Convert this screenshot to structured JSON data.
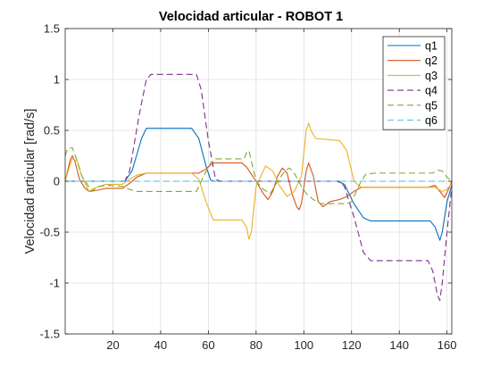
{
  "chart_data": {
    "type": "line",
    "title": "Velocidad articular - ROBOT 1",
    "xlabel": "",
    "ylabel": "Velocidad articular [rad/s]",
    "xlim": [
      0,
      162
    ],
    "ylim": [
      -1.5,
      1.5
    ],
    "xticks": [
      20,
      40,
      60,
      80,
      100,
      120,
      140,
      160
    ],
    "yticks": [
      -1.5,
      -1,
      -0.5,
      0,
      0.5,
      1,
      1.5
    ],
    "ytick_labels": [
      "-1.5",
      "-1",
      "-0.5",
      "0",
      "0.5",
      "1",
      "1.5"
    ],
    "grid": true,
    "legend_position": "top-right",
    "series": [
      {
        "name": "q1",
        "color": "#0072BD",
        "dash": "solid",
        "points": [
          [
            0,
            0
          ],
          [
            25,
            0
          ],
          [
            28,
            0.1
          ],
          [
            32,
            0.42
          ],
          [
            34,
            0.52
          ],
          [
            53,
            0.52
          ],
          [
            56,
            0.42
          ],
          [
            59,
            0.15
          ],
          [
            61,
            0.01
          ],
          [
            63,
            0
          ],
          [
            114,
            0
          ],
          [
            117,
            -0.03
          ],
          [
            121,
            -0.22
          ],
          [
            125,
            -0.36
          ],
          [
            128,
            -0.39
          ],
          [
            153,
            -0.39
          ],
          [
            155,
            -0.45
          ],
          [
            157,
            -0.58
          ],
          [
            158,
            -0.5
          ],
          [
            160,
            -0.2
          ],
          [
            162,
            -0.04
          ]
        ]
      },
      {
        "name": "q2",
        "color": "#D95319",
        "dash": "solid",
        "points": [
          [
            0,
            0
          ],
          [
            2,
            0.2
          ],
          [
            3,
            0.25
          ],
          [
            4,
            0.2
          ],
          [
            6,
            0.02
          ],
          [
            8,
            -0.06
          ],
          [
            10,
            -0.1
          ],
          [
            13,
            -0.09
          ],
          [
            17,
            -0.07
          ],
          [
            24,
            -0.07
          ],
          [
            27,
            -0.02
          ],
          [
            30,
            0.04
          ],
          [
            34,
            0.08
          ],
          [
            56,
            0.08
          ],
          [
            59,
            0.12
          ],
          [
            62,
            0.18
          ],
          [
            74,
            0.18
          ],
          [
            76,
            0.14
          ],
          [
            80,
            0
          ],
          [
            83,
            -0.12
          ],
          [
            85,
            -0.18
          ],
          [
            87,
            -0.1
          ],
          [
            89,
            0.05
          ],
          [
            91,
            0.13
          ],
          [
            93,
            0.08
          ],
          [
            95,
            -0.12
          ],
          [
            97,
            -0.25
          ],
          [
            98,
            -0.28
          ],
          [
            99,
            -0.22
          ],
          [
            101,
            0.1
          ],
          [
            102,
            0.18
          ],
          [
            104,
            0.05
          ],
          [
            106,
            -0.2
          ],
          [
            108,
            -0.25
          ],
          [
            111,
            -0.2
          ],
          [
            115,
            -0.18
          ],
          [
            118,
            -0.15
          ],
          [
            121,
            -0.1
          ],
          [
            124,
            -0.06
          ],
          [
            152,
            -0.06
          ],
          [
            155,
            -0.04
          ],
          [
            157,
            -0.1
          ],
          [
            159,
            -0.16
          ],
          [
            161,
            -0.06
          ],
          [
            162,
            0
          ]
        ]
      },
      {
        "name": "q3",
        "color": "#EDB120",
        "dash": "solid",
        "points": [
          [
            0,
            0
          ],
          [
            2,
            0.16
          ],
          [
            3,
            0.22
          ],
          [
            5,
            0.2
          ],
          [
            7,
            0.05
          ],
          [
            10,
            -0.1
          ],
          [
            12,
            -0.07
          ],
          [
            17,
            -0.03
          ],
          [
            24,
            -0.03
          ],
          [
            27,
            0.02
          ],
          [
            30,
            0.06
          ],
          [
            34,
            0.08
          ],
          [
            53,
            0.08
          ],
          [
            56,
            0.02
          ],
          [
            59,
            -0.2
          ],
          [
            62,
            -0.38
          ],
          [
            74,
            -0.38
          ],
          [
            76,
            -0.45
          ],
          [
            77,
            -0.57
          ],
          [
            78,
            -0.5
          ],
          [
            80,
            -0.05
          ],
          [
            84,
            0.15
          ],
          [
            87,
            0.1
          ],
          [
            90,
            -0.05
          ],
          [
            93,
            -0.15
          ],
          [
            96,
            -0.1
          ],
          [
            99,
            0.05
          ],
          [
            101,
            0.5
          ],
          [
            102,
            0.57
          ],
          [
            103,
            0.5
          ],
          [
            105,
            0.42
          ],
          [
            115,
            0.4
          ],
          [
            118,
            0.3
          ],
          [
            121,
            0
          ],
          [
            124,
            -0.06
          ],
          [
            155,
            -0.06
          ],
          [
            158,
            -0.1
          ],
          [
            160,
            -0.08
          ],
          [
            162,
            -0.02
          ]
        ]
      },
      {
        "name": "q4",
        "color": "#7E2F8E",
        "dash": "dash",
        "points": [
          [
            0,
            0
          ],
          [
            25,
            0
          ],
          [
            27,
            0.1
          ],
          [
            31,
            0.65
          ],
          [
            34,
            1.0
          ],
          [
            36,
            1.05
          ],
          [
            55,
            1.05
          ],
          [
            57,
            0.9
          ],
          [
            60,
            0.4
          ],
          [
            63,
            0.02
          ],
          [
            65,
            0
          ],
          [
            115,
            0
          ],
          [
            117,
            -0.05
          ],
          [
            121,
            -0.35
          ],
          [
            125,
            -0.7
          ],
          [
            128,
            -0.78
          ],
          [
            150,
            -0.78
          ],
          [
            152,
            -0.78
          ],
          [
            154,
            -0.88
          ],
          [
            155,
            -1.0
          ],
          [
            156,
            -1.12
          ],
          [
            157,
            -1.17
          ],
          [
            158,
            -1.0
          ],
          [
            160,
            -0.5
          ],
          [
            162,
            -0.05
          ]
        ]
      },
      {
        "name": "q5",
        "color": "#77AC30",
        "dash": "dash",
        "points": [
          [
            0,
            0.25
          ],
          [
            1,
            0.32
          ],
          [
            3,
            0.33
          ],
          [
            5,
            0.2
          ],
          [
            7,
            0.05
          ],
          [
            9,
            -0.02
          ],
          [
            11,
            -0.1
          ],
          [
            14,
            -0.05
          ],
          [
            18,
            -0.04
          ],
          [
            24,
            -0.05
          ],
          [
            27,
            -0.08
          ],
          [
            30,
            -0.1
          ],
          [
            55,
            -0.1
          ],
          [
            58,
            0.05
          ],
          [
            61,
            0.18
          ],
          [
            63,
            0.22
          ],
          [
            75,
            0.22
          ],
          [
            76,
            0.28
          ],
          [
            77,
            0.3
          ],
          [
            78,
            0.2
          ],
          [
            80,
            0
          ],
          [
            83,
            -0.08
          ],
          [
            86,
            -0.12
          ],
          [
            89,
            0
          ],
          [
            92,
            0.1
          ],
          [
            94,
            0.13
          ],
          [
            96,
            0.08
          ],
          [
            99,
            -0.05
          ],
          [
            101,
            -0.12
          ],
          [
            104,
            -0.18
          ],
          [
            107,
            -0.22
          ],
          [
            118,
            -0.22
          ],
          [
            120,
            -0.2
          ],
          [
            122,
            -0.1
          ],
          [
            124,
            0
          ],
          [
            126,
            0.07
          ],
          [
            130,
            0.08
          ],
          [
            150,
            0.08
          ],
          [
            154,
            0.08
          ],
          [
            156,
            0.11
          ],
          [
            158,
            0.1
          ],
          [
            160,
            0.04
          ],
          [
            162,
            0
          ]
        ]
      },
      {
        "name": "q6",
        "color": "#4DBEEE",
        "dash": "dash",
        "points": [
          [
            0,
            0
          ],
          [
            162,
            0
          ]
        ]
      }
    ]
  }
}
